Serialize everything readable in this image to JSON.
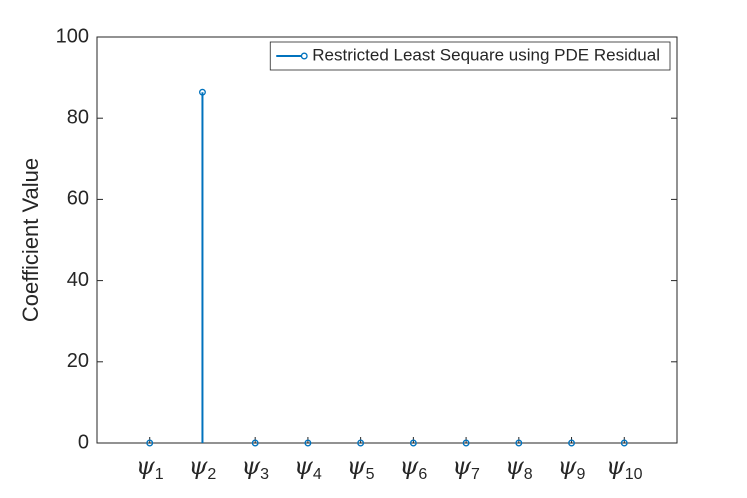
{
  "chart_data": {
    "type": "stem",
    "ylabel": "Coefficient Value",
    "categories": [
      "ψ1",
      "ψ2",
      "ψ3",
      "ψ4",
      "ψ5",
      "ψ6",
      "ψ7",
      "ψ8",
      "ψ9",
      "ψ10"
    ],
    "series": [
      {
        "name": "Restricted Least Sequare using PDE Residual",
        "color": "#0072BD",
        "values": [
          0,
          86.4,
          0,
          0,
          0,
          0,
          0,
          0,
          0,
          0
        ]
      }
    ],
    "ylim": [
      0,
      100
    ],
    "yticks": [
      0,
      20,
      40,
      60,
      80,
      100
    ],
    "legend": "top-right"
  }
}
